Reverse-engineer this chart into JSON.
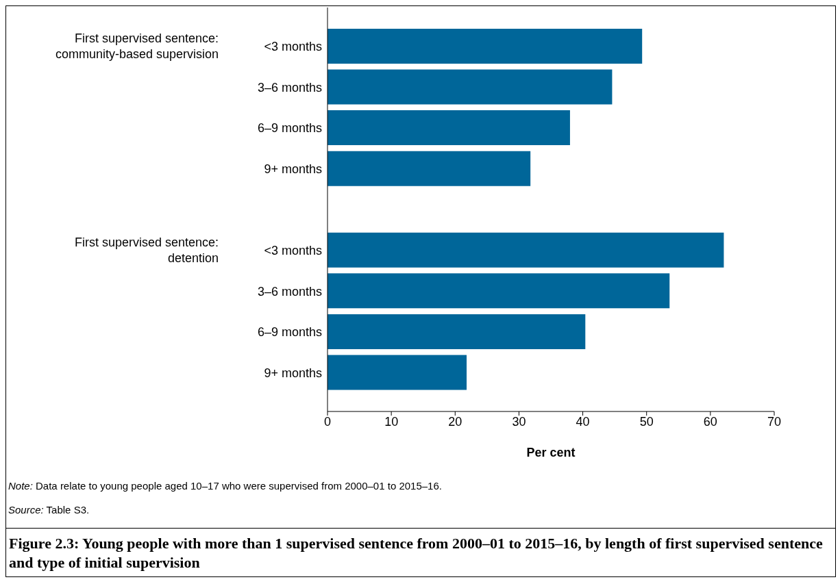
{
  "chart_data": {
    "type": "bar",
    "orientation": "horizontal",
    "title": "Figure 2.3: Young people with more than 1 supervised sentence from 2000–01 to 2015–16, by length of first supervised sentence and type of initial supervision",
    "xlabel": "Per cent",
    "categories": [
      "<3 months",
      "3–6 months",
      "6–9 months",
      "9+ months",
      null,
      "<3 months",
      "3–6 months",
      "6–9 months",
      "9+ months"
    ],
    "values": [
      49.3,
      44.6,
      38.0,
      31.8,
      null,
      62.1,
      53.6,
      40.4,
      21.8
    ],
    "color": "#006699",
    "xlim": [
      0,
      70
    ],
    "xticks": [
      0,
      10,
      20,
      30,
      40,
      50,
      60,
      70
    ],
    "grid": false,
    "legend": false,
    "annotations": [
      "First supervised sentence:\ncommunity-based supervision",
      "First supervised sentence:\ndetention",
      "Note: Data relate to young people aged 10–17 who were supervised from 2000–01 to 2015–16.",
      "Source: Table S3."
    ]
  }
}
